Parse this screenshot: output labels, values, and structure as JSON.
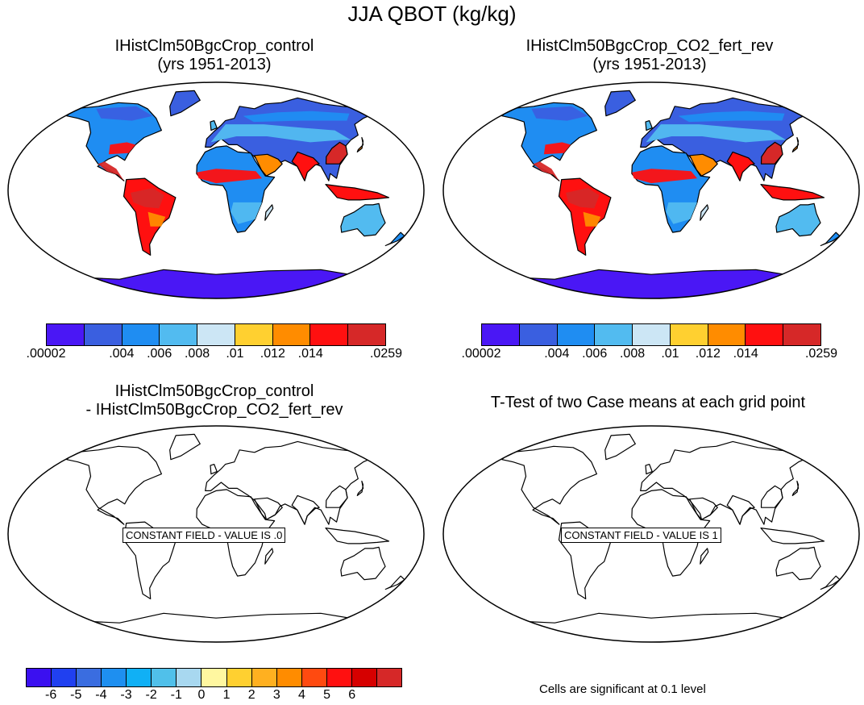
{
  "figure": {
    "title": "JJA QBOT (kg/kg)"
  },
  "panels": [
    {
      "id": "control",
      "title_line1": "IHistClm50BgcCrop_control",
      "title_line2": "(yrs 1951-2013)"
    },
    {
      "id": "co2",
      "title_line1": "IHistClm50BgcCrop_CO2_fert_rev",
      "title_line2": "(yrs 1951-2013)"
    },
    {
      "id": "diff",
      "title_line1": "IHistClm50BgcCrop_control",
      "title_line2": "- IHistClm50BgcCrop_CO2_fert_rev",
      "constant_label": "CONSTANT FIELD - VALUE IS .0"
    },
    {
      "id": "ttest",
      "title_line1": "T-Test of two Case means at each grid point",
      "constant_label": "CONSTANT FIELD - VALUE IS 1"
    }
  ],
  "colorbar_main": {
    "colors": [
      "#4a17f5",
      "#3a5fe0",
      "#1f8df2",
      "#52bbf0",
      "#cce6f5",
      "#ffd030",
      "#ff8c00",
      "#ff1010",
      "#d62828"
    ],
    "ticks": [
      ".00002",
      ".004",
      ".006",
      ".008",
      ".01",
      ".012",
      ".014",
      ".0259"
    ],
    "tick_boundaries": [
      0,
      2,
      3,
      4,
      5,
      6,
      7,
      9
    ]
  },
  "colorbar_diff": {
    "colors": [
      "#3b10f0",
      "#2040f0",
      "#3a6de0",
      "#1e8ff0",
      "#10b0f5",
      "#50c0ea",
      "#a8d8f0",
      "#fff7a0",
      "#ffd030",
      "#ffb020",
      "#ff8c00",
      "#ff4a10",
      "#ff1010",
      "#d60000",
      "#d62828"
    ],
    "ticks": [
      "-6",
      "-5",
      "-4",
      "-3",
      "-2",
      "-1",
      "0",
      "1",
      "2",
      "3",
      "4",
      "5",
      "6"
    ]
  },
  "note": "Cells are significant at 0.1 level"
}
